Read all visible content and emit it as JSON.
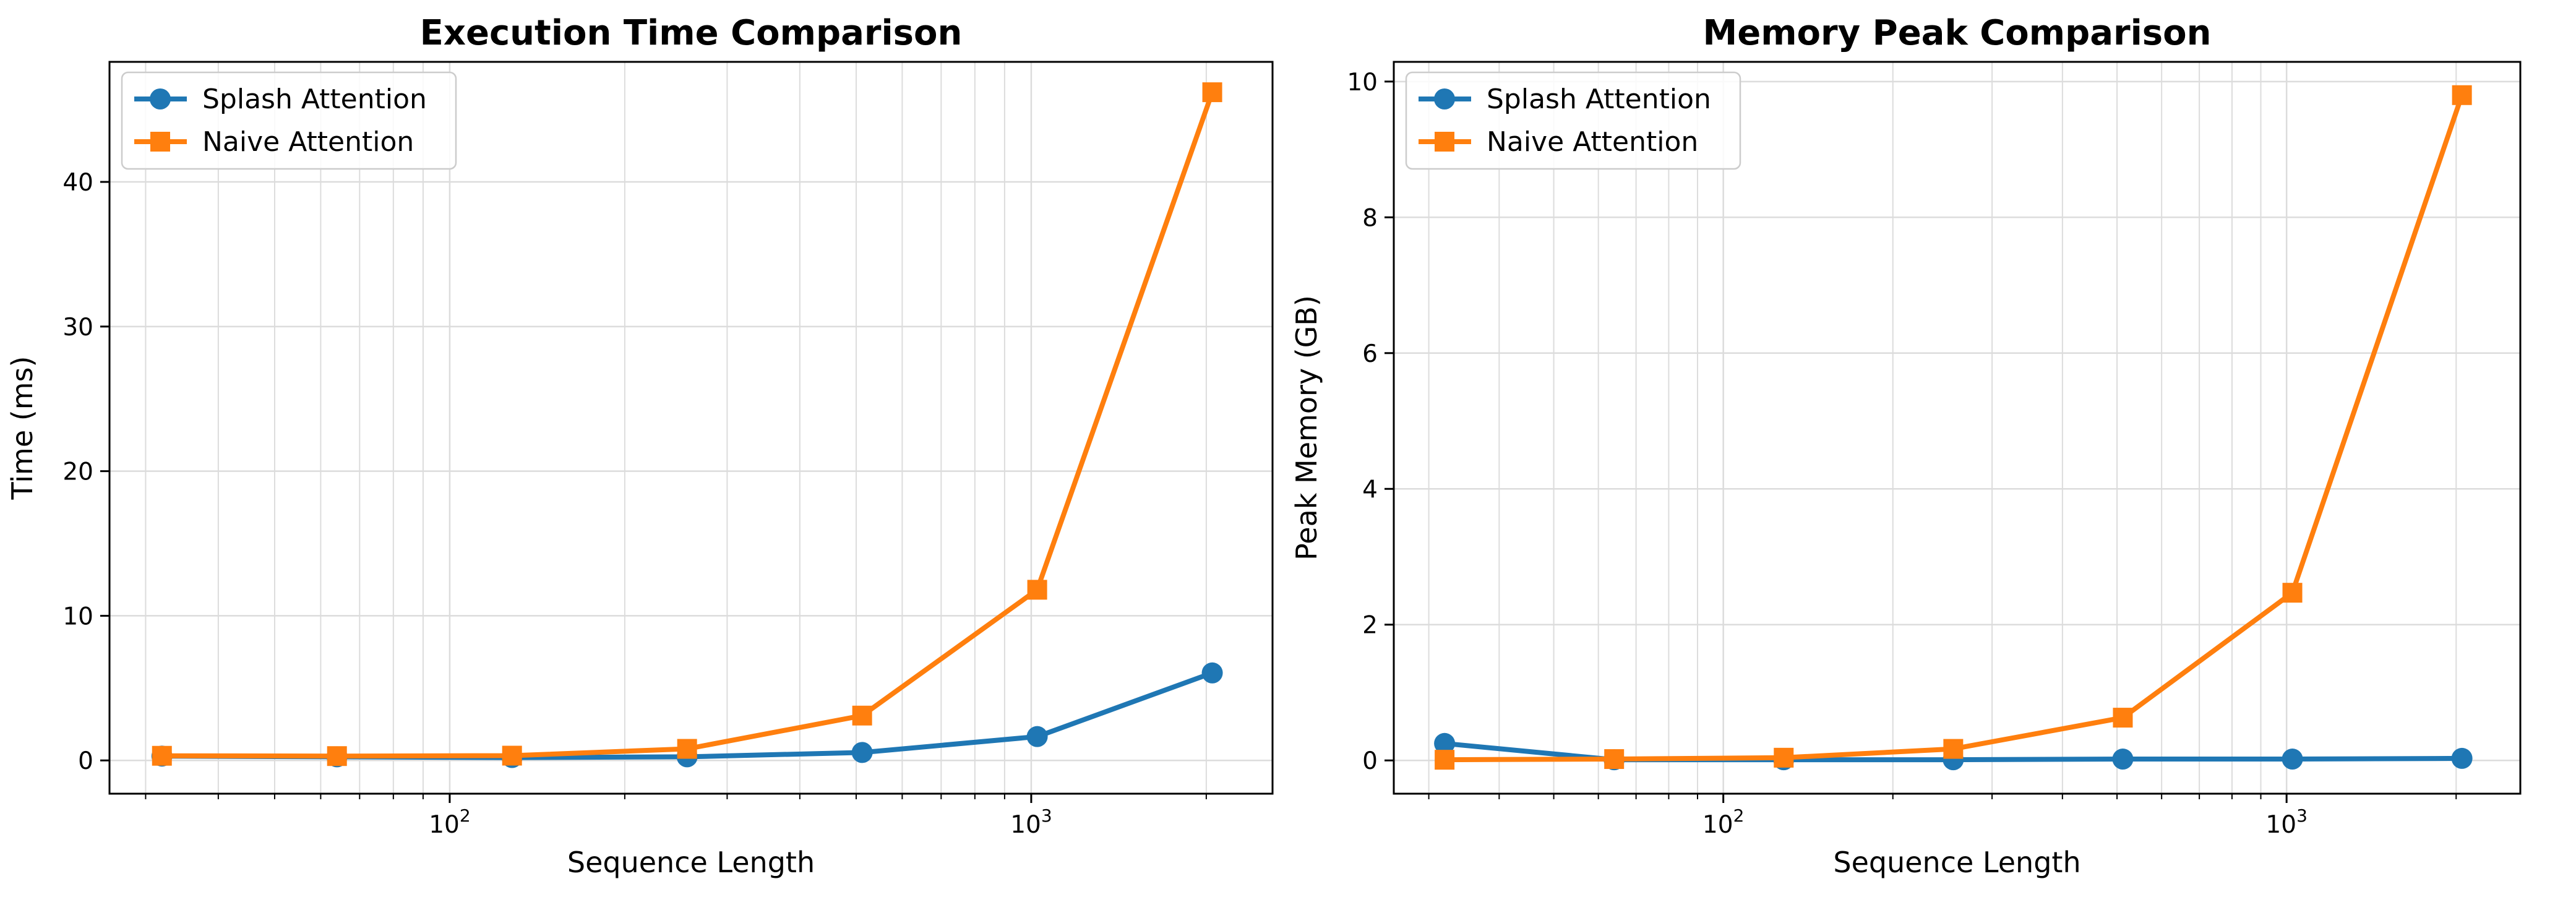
{
  "chart_data": [
    {
      "type": "line",
      "title": "Execution Time Comparison",
      "xlabel": "Sequence Length",
      "ylabel": "Time (ms)",
      "xscale": "log",
      "xlim": [
        26,
        2600
      ],
      "ylim": [
        -2.3,
        48.3
      ],
      "xticks": [
        {
          "value": 100,
          "base": "10",
          "exp": "2"
        },
        {
          "value": 1000,
          "base": "10",
          "exp": "3"
        }
      ],
      "yticks": [
        0,
        10,
        20,
        30,
        40
      ],
      "grid": true,
      "legend_position": "top-left",
      "x": [
        32,
        64,
        128,
        256,
        512,
        1024,
        2048
      ],
      "series": [
        {
          "name": "Splash Attention",
          "values": [
            0.3,
            0.25,
            0.2,
            0.25,
            0.55,
            1.65,
            6.05
          ],
          "color": "#1f77b4",
          "marker": "circle"
        },
        {
          "name": "Naive Attention",
          "values": [
            0.32,
            0.3,
            0.33,
            0.8,
            3.1,
            11.8,
            46.2
          ],
          "color": "#ff7f0e",
          "marker": "square"
        }
      ]
    },
    {
      "type": "line",
      "title": "Memory Peak Comparison",
      "xlabel": "Sequence Length",
      "ylabel": "Peak Memory (GB)",
      "xscale": "log",
      "xlim": [
        26,
        2600
      ],
      "ylim": [
        -0.49,
        10.29
      ],
      "xticks": [
        {
          "value": 100,
          "base": "10",
          "exp": "2"
        },
        {
          "value": 1000,
          "base": "10",
          "exp": "3"
        }
      ],
      "yticks": [
        0,
        2,
        4,
        6,
        8,
        10
      ],
      "grid": true,
      "legend_position": "top-left",
      "x": [
        32,
        64,
        128,
        256,
        512,
        1024,
        2048
      ],
      "series": [
        {
          "name": "Splash Attention",
          "values": [
            0.25,
            0.01,
            0.01,
            0.01,
            0.02,
            0.02,
            0.03
          ],
          "color": "#1f77b4",
          "marker": "circle"
        },
        {
          "name": "Naive Attention",
          "values": [
            0.01,
            0.02,
            0.04,
            0.17,
            0.63,
            2.47,
            9.8
          ],
          "color": "#ff7f0e",
          "marker": "square"
        }
      ]
    }
  ]
}
